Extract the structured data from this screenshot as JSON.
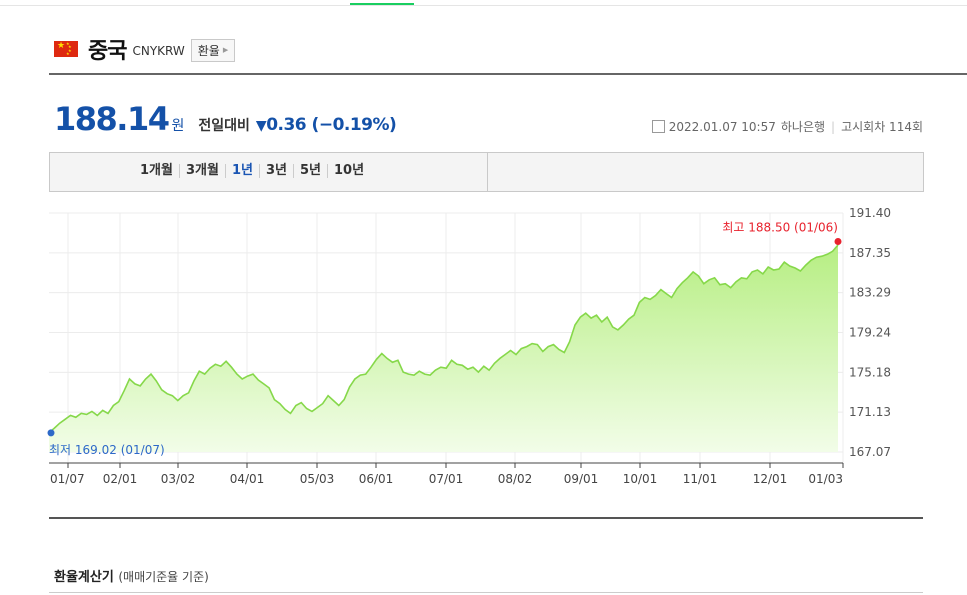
{
  "header": {
    "title": "중국",
    "code": "CNYKRW",
    "fx_button_label": "환율"
  },
  "price": {
    "value": "188.14",
    "unit": "원",
    "prev_label": "전일대비",
    "change_icon": "down-triangle-icon",
    "change": "0.36 (−0.19%)",
    "color": "#1451a8"
  },
  "meta": {
    "datetime": "2022.01.07 10:57",
    "bank": "하나은행",
    "notice": "고시회차 114회"
  },
  "tabs": [
    {
      "label": "1개월",
      "active": false
    },
    {
      "label": "3개월",
      "active": false
    },
    {
      "label": "1년",
      "active": true
    },
    {
      "label": "3년",
      "active": false
    },
    {
      "label": "5년",
      "active": false
    },
    {
      "label": "10년",
      "active": false
    }
  ],
  "calculator": {
    "title": "환율계산기",
    "subtitle": "(매매기준율 기준)"
  },
  "chart_data": {
    "type": "area",
    "x_tick_labels": [
      "01/07",
      "02/01",
      "03/02",
      "04/01",
      "05/03",
      "06/01",
      "07/01",
      "08/02",
      "09/01",
      "10/01",
      "11/01",
      "12/01",
      "01/03"
    ],
    "y_tick_labels": [
      "191.40",
      "187.35",
      "183.29",
      "179.24",
      "175.18",
      "171.13",
      "167.07"
    ],
    "ylim": [
      167.07,
      191.4
    ],
    "grid": true,
    "line_color": "#86d84a",
    "fill_color": "#c8f5a0",
    "max_label": "최고 188.50 (01/06)",
    "max_color": "#e8232e",
    "min_label": "최저 169.02 (01/07)",
    "min_color": "#2d69c8",
    "values": [
      169.02,
      169.5,
      170.0,
      170.4,
      170.8,
      170.6,
      171.0,
      170.9,
      171.2,
      170.8,
      171.3,
      171.0,
      171.8,
      172.2,
      173.3,
      174.5,
      174.0,
      173.8,
      174.5,
      175.0,
      174.3,
      173.4,
      173.0,
      172.8,
      172.3,
      172.8,
      173.1,
      174.3,
      175.3,
      175.0,
      175.6,
      176.0,
      175.8,
      176.3,
      175.7,
      175.0,
      174.5,
      174.8,
      175.0,
      174.4,
      174.0,
      173.6,
      172.4,
      172.0,
      171.4,
      171.0,
      171.8,
      172.1,
      171.5,
      171.2,
      171.6,
      172.0,
      172.8,
      172.3,
      171.8,
      172.4,
      173.7,
      174.5,
      174.9,
      175.0,
      175.7,
      176.5,
      177.1,
      176.6,
      176.2,
      176.4,
      175.2,
      175.0,
      174.9,
      175.3,
      175.0,
      174.9,
      175.4,
      175.7,
      175.6,
      176.4,
      176.0,
      175.9,
      175.5,
      175.7,
      175.2,
      175.8,
      175.4,
      176.1,
      176.6,
      177.0,
      177.4,
      177.0,
      177.6,
      177.8,
      178.1,
      178.0,
      177.3,
      177.8,
      178.0,
      177.5,
      177.2,
      178.3,
      180.0,
      180.8,
      181.2,
      180.7,
      181.0,
      180.3,
      180.8,
      179.8,
      179.5,
      180.0,
      180.6,
      181.0,
      182.3,
      182.8,
      182.6,
      183.0,
      183.6,
      183.2,
      182.8,
      183.7,
      184.3,
      184.8,
      185.4,
      185.0,
      184.2,
      184.6,
      184.8,
      184.1,
      184.2,
      183.8,
      184.4,
      184.8,
      184.7,
      185.4,
      185.6,
      185.2,
      185.9,
      185.6,
      185.7,
      186.4,
      186.0,
      185.8,
      185.5,
      186.1,
      186.6,
      186.9,
      187.0,
      187.2,
      187.5,
      188.14
    ]
  }
}
